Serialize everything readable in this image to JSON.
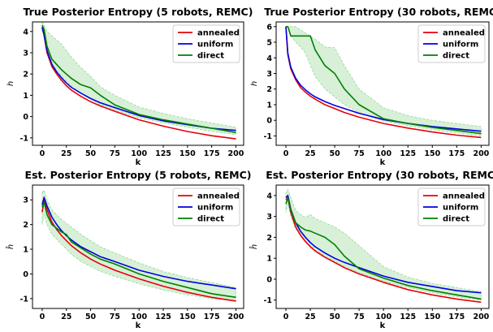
{
  "figure": {
    "legend_location": "top-right",
    "grid": false,
    "colors": {
      "annealed": "#e8000b",
      "uniform": "#0000e0",
      "direct": "#008000",
      "direct_band": "#5ec45e"
    }
  },
  "chart_data": [
    {
      "type": "line",
      "title": "True Posterior Entropy (5 robots, REMC)",
      "xlabel": "k",
      "ylabel": "h",
      "xlim": [
        -10,
        208
      ],
      "ylim": [
        -1.35,
        4.45
      ],
      "xticks": [
        "0",
        "25",
        "50",
        "75",
        "100",
        "125",
        "150",
        "175",
        "200"
      ],
      "yticks": [
        "-1",
        "0",
        "1",
        "2",
        "3",
        "4"
      ],
      "x": [
        0,
        2,
        5,
        10,
        15,
        20,
        25,
        30,
        40,
        50,
        60,
        75,
        100,
        125,
        150,
        175,
        200
      ],
      "series": [
        {
          "name": "annealed",
          "values": [
            4.2,
            3.8,
            3.0,
            2.35,
            2.0,
            1.7,
            1.45,
            1.25,
            0.95,
            0.7,
            0.5,
            0.25,
            -0.15,
            -0.45,
            -0.7,
            -0.9,
            -1.05
          ]
        },
        {
          "name": "uniform",
          "values": [
            4.2,
            3.85,
            3.1,
            2.45,
            2.1,
            1.82,
            1.58,
            1.38,
            1.1,
            0.85,
            0.65,
            0.42,
            0.05,
            -0.2,
            -0.38,
            -0.55,
            -0.65
          ]
        },
        {
          "name": "direct",
          "values": [
            4.3,
            4.1,
            3.3,
            2.7,
            2.45,
            2.2,
            2.0,
            1.8,
            1.5,
            1.35,
            1.0,
            0.55,
            0.1,
            -0.15,
            -0.35,
            -0.55,
            -0.75
          ]
        }
      ],
      "bands": [
        {
          "series": "direct",
          "lower": [
            4.0,
            3.9,
            3.1,
            2.5,
            2.2,
            1.9,
            1.65,
            1.45,
            1.1,
            0.8,
            0.55,
            0.3,
            -0.05,
            -0.3,
            -0.5,
            -0.7,
            -0.85
          ],
          "upper": [
            4.45,
            4.3,
            4.0,
            3.8,
            3.6,
            3.4,
            3.1,
            2.8,
            2.3,
            1.9,
            1.4,
            1.0,
            0.45,
            0.15,
            -0.1,
            -0.3,
            -0.5
          ]
        }
      ]
    },
    {
      "type": "line",
      "title": "True Posterior Entropy (30 robots, REMC)",
      "xlabel": "k",
      "ylabel": "h",
      "xlim": [
        -10,
        208
      ],
      "ylim": [
        -1.6,
        6.3
      ],
      "xticks": [
        "0",
        "25",
        "50",
        "75",
        "100",
        "125",
        "150",
        "175",
        "200"
      ],
      "yticks": [
        "-1",
        "0",
        "1",
        "2",
        "3",
        "4",
        "5",
        "6"
      ],
      "x": [
        0,
        2,
        5,
        10,
        15,
        20,
        25,
        30,
        40,
        50,
        60,
        75,
        100,
        125,
        150,
        175,
        200
      ],
      "series": [
        {
          "name": "annealed",
          "values": [
            6.0,
            4.2,
            3.3,
            2.6,
            2.1,
            1.8,
            1.55,
            1.35,
            1.0,
            0.75,
            0.5,
            0.2,
            -0.2,
            -0.5,
            -0.75,
            -0.95,
            -1.1
          ]
        },
        {
          "name": "uniform",
          "values": [
            6.0,
            4.3,
            3.4,
            2.7,
            2.25,
            1.95,
            1.7,
            1.5,
            1.2,
            0.95,
            0.75,
            0.45,
            0.05,
            -0.2,
            -0.4,
            -0.55,
            -0.7
          ]
        },
        {
          "name": "direct",
          "values": [
            6.0,
            6.0,
            5.4,
            5.4,
            5.4,
            5.4,
            5.4,
            4.5,
            3.5,
            3.0,
            2.0,
            1.0,
            0.1,
            -0.2,
            -0.45,
            -0.65,
            -0.85
          ]
        }
      ],
      "bands": [
        {
          "series": "direct",
          "lower": [
            6.0,
            6.0,
            5.4,
            5.0,
            4.7,
            4.3,
            3.5,
            2.8,
            2.0,
            1.5,
            1.0,
            0.5,
            -0.05,
            -0.35,
            -0.6,
            -0.8,
            -1.0
          ],
          "upper": [
            6.0,
            6.0,
            6.0,
            6.0,
            5.8,
            5.6,
            5.4,
            5.2,
            4.7,
            4.65,
            3.5,
            2.0,
            0.8,
            0.3,
            0.0,
            -0.2,
            -0.4
          ]
        }
      ]
    },
    {
      "type": "line",
      "title": "Est. Posterior Entropy (5 robots, REMC)",
      "xlabel": "k",
      "ylabel": "ĥ",
      "xlim": [
        -10,
        208
      ],
      "ylim": [
        -1.4,
        3.6
      ],
      "xticks": [
        "0",
        "25",
        "50",
        "75",
        "100",
        "125",
        "150",
        "175",
        "200"
      ],
      "yticks": [
        "-1",
        "0",
        "1",
        "2",
        "3"
      ],
      "x": [
        0,
        2,
        5,
        10,
        15,
        20,
        25,
        30,
        40,
        50,
        60,
        75,
        100,
        125,
        150,
        175,
        200
      ],
      "series": [
        {
          "name": "annealed",
          "values": [
            2.5,
            3.0,
            2.6,
            2.1,
            1.8,
            1.55,
            1.35,
            1.15,
            0.85,
            0.6,
            0.4,
            0.15,
            -0.2,
            -0.5,
            -0.75,
            -0.95,
            -1.1
          ]
        },
        {
          "name": "uniform",
          "values": [
            2.8,
            3.1,
            2.75,
            2.3,
            2.0,
            1.75,
            1.55,
            1.38,
            1.1,
            0.9,
            0.7,
            0.5,
            0.15,
            -0.1,
            -0.3,
            -0.45,
            -0.6
          ]
        },
        {
          "name": "direct",
          "values": [
            2.7,
            2.9,
            2.4,
            2.0,
            1.85,
            1.7,
            1.6,
            1.3,
            1.05,
            0.8,
            0.6,
            0.4,
            0.0,
            -0.3,
            -0.55,
            -0.8,
            -0.95
          ]
        }
      ],
      "bands": [
        {
          "series": "direct",
          "lower": [
            2.0,
            2.4,
            2.0,
            1.6,
            1.4,
            1.2,
            1.0,
            0.8,
            0.5,
            0.3,
            0.1,
            -0.1,
            -0.4,
            -0.65,
            -0.85,
            -1.0,
            -1.1
          ],
          "upper": [
            3.3,
            3.4,
            3.0,
            2.6,
            2.4,
            2.2,
            2.05,
            1.9,
            1.6,
            1.35,
            1.1,
            0.85,
            0.45,
            0.1,
            -0.15,
            -0.35,
            -0.55
          ]
        }
      ]
    },
    {
      "type": "line",
      "title": "Est. Posterior Entropy (30 robots, REMC)",
      "xlabel": "k",
      "ylabel": "ĥ",
      "xlim": [
        -10,
        208
      ],
      "ylim": [
        -1.4,
        4.5
      ],
      "xticks": [
        "0",
        "25",
        "50",
        "75",
        "100",
        "125",
        "150",
        "175",
        "200"
      ],
      "yticks": [
        "-1",
        "0",
        "1",
        "2",
        "3",
        "4"
      ],
      "x": [
        0,
        2,
        5,
        10,
        15,
        20,
        25,
        30,
        40,
        50,
        60,
        75,
        100,
        125,
        150,
        175,
        200
      ],
      "series": [
        {
          "name": "annealed",
          "values": [
            3.8,
            3.9,
            3.2,
            2.5,
            2.1,
            1.8,
            1.55,
            1.35,
            1.05,
            0.8,
            0.55,
            0.25,
            -0.15,
            -0.5,
            -0.75,
            -0.95,
            -1.1
          ]
        },
        {
          "name": "uniform",
          "values": [
            3.9,
            4.0,
            3.35,
            2.7,
            2.3,
            2.0,
            1.75,
            1.55,
            1.25,
            1.0,
            0.8,
            0.55,
            0.15,
            -0.15,
            -0.35,
            -0.55,
            -0.65
          ]
        },
        {
          "name": "direct",
          "values": [
            3.6,
            3.9,
            3.3,
            2.7,
            2.5,
            2.35,
            2.3,
            2.2,
            2.0,
            1.65,
            1.1,
            0.5,
            0.05,
            -0.3,
            -0.55,
            -0.75,
            -0.95
          ]
        }
      ],
      "bands": [
        {
          "series": "direct",
          "lower": [
            3.2,
            3.6,
            3.0,
            2.4,
            2.1,
            1.8,
            1.6,
            1.4,
            1.1,
            0.85,
            0.6,
            0.3,
            -0.1,
            -0.4,
            -0.65,
            -0.85,
            -1.0
          ],
          "upper": [
            4.1,
            4.3,
            3.9,
            3.3,
            3.1,
            2.95,
            3.1,
            2.9,
            2.7,
            2.5,
            2.2,
            1.6,
            0.6,
            0.1,
            -0.2,
            -0.4,
            -0.6
          ]
        }
      ]
    }
  ]
}
